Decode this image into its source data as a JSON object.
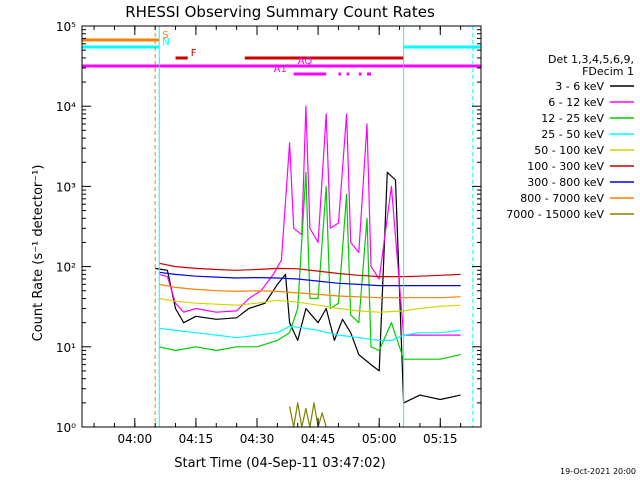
{
  "chart_data": {
    "type": "line",
    "title": "RHESSI Observing Summary Count Rates",
    "xlabel": "Start Time (04-Sep-11 03:47:02)",
    "ylabel": "Count Rate (s⁻¹ detector⁻¹)",
    "y_scale": "log",
    "ylim": [
      1,
      100000
    ],
    "xlim": [
      "03:47:02",
      "05:25:00"
    ],
    "x_ticks": [
      "04:00",
      "04:15",
      "04:30",
      "04:45",
      "05:00",
      "05:15"
    ],
    "y_ticks": [
      {
        "value": 1,
        "label": "10⁰"
      },
      {
        "value": 10,
        "label": "10¹"
      },
      {
        "value": 100,
        "label": "10²"
      },
      {
        "value": 1000,
        "label": "10³"
      },
      {
        "value": 10000,
        "label": "10⁴"
      },
      {
        "value": 100000,
        "label": "10⁵"
      }
    ],
    "legend_position": "right",
    "legend_header": [
      "Det 1,3,4,5,6,9,",
      "FDecim 1"
    ],
    "footer": "19-Oct-2021 20:00",
    "series": [
      {
        "name": "3 - 6 keV",
        "color": "#000000",
        "points": [
          [
            "04:05",
            95
          ],
          [
            "04:08",
            90
          ],
          [
            "04:10",
            30
          ],
          [
            "04:12",
            20
          ],
          [
            "04:15",
            24
          ],
          [
            "04:20",
            22
          ],
          [
            "04:25",
            23
          ],
          [
            "04:28",
            30
          ],
          [
            "04:32",
            35
          ],
          [
            "04:35",
            60
          ],
          [
            "04:37",
            80
          ],
          [
            "04:38",
            20
          ],
          [
            "04:40",
            12
          ],
          [
            "04:42",
            30
          ],
          [
            "04:45",
            20
          ],
          [
            "04:47",
            30
          ],
          [
            "04:49",
            12
          ],
          [
            "04:51",
            22
          ],
          [
            "04:53",
            15
          ],
          [
            "04:55",
            8
          ],
          [
            "04:58",
            6
          ],
          [
            "05:00",
            5
          ],
          [
            "05:02",
            1500
          ],
          [
            "05:04",
            1200
          ],
          [
            "05:06",
            2
          ],
          [
            "05:10",
            2.5
          ],
          [
            "05:15",
            2.2
          ],
          [
            "05:20",
            2.5
          ]
        ]
      },
      {
        "name": "6 - 12 keV",
        "color": "#ff00ff",
        "points": [
          [
            "04:06",
            80
          ],
          [
            "04:08",
            75
          ],
          [
            "04:10",
            35
          ],
          [
            "04:12",
            27
          ],
          [
            "04:15",
            30
          ],
          [
            "04:20",
            27
          ],
          [
            "04:25",
            28
          ],
          [
            "04:28",
            40
          ],
          [
            "04:31",
            50
          ],
          [
            "04:34",
            80
          ],
          [
            "04:36",
            120
          ],
          [
            "04:38",
            3500
          ],
          [
            "04:39",
            300
          ],
          [
            "04:41",
            250
          ],
          [
            "04:42",
            10000
          ],
          [
            "04:43",
            300
          ],
          [
            "04:45",
            200
          ],
          [
            "04:47",
            8000
          ],
          [
            "04:48",
            300
          ],
          [
            "04:50",
            350
          ],
          [
            "04:52",
            8000
          ],
          [
            "04:53",
            200
          ],
          [
            "04:55",
            150
          ],
          [
            "04:57",
            6000
          ],
          [
            "04:58",
            100
          ],
          [
            "05:00",
            70
          ],
          [
            "05:03",
            1000
          ],
          [
            "05:06",
            14
          ],
          [
            "05:10",
            14
          ],
          [
            "05:15",
            14
          ],
          [
            "05:20",
            14
          ]
        ]
      },
      {
        "name": "12 - 25 keV",
        "color": "#00cc00",
        "points": [
          [
            "04:06",
            10
          ],
          [
            "04:10",
            9
          ],
          [
            "04:15",
            10
          ],
          [
            "04:20",
            9
          ],
          [
            "04:25",
            10
          ],
          [
            "04:30",
            10
          ],
          [
            "04:35",
            12
          ],
          [
            "04:38",
            15
          ],
          [
            "04:40",
            30
          ],
          [
            "04:42",
            1500
          ],
          [
            "04:43",
            40
          ],
          [
            "04:45",
            40
          ],
          [
            "04:47",
            1000
          ],
          [
            "04:48",
            30
          ],
          [
            "04:50",
            35
          ],
          [
            "04:52",
            800
          ],
          [
            "04:53",
            25
          ],
          [
            "04:55",
            20
          ],
          [
            "04:57",
            400
          ],
          [
            "04:58",
            10
          ],
          [
            "05:00",
            9
          ],
          [
            "05:03",
            20
          ],
          [
            "05:06",
            7
          ],
          [
            "05:10",
            7
          ],
          [
            "05:15",
            7
          ],
          [
            "05:20",
            8
          ]
        ]
      },
      {
        "name": "25 - 50 keV",
        "color": "#00ffff",
        "points": [
          [
            "04:06",
            17
          ],
          [
            "04:10",
            16
          ],
          [
            "04:15",
            15
          ],
          [
            "04:20",
            14
          ],
          [
            "04:25",
            13
          ],
          [
            "04:30",
            14
          ],
          [
            "04:35",
            15
          ],
          [
            "04:38",
            18
          ],
          [
            "04:42",
            17
          ],
          [
            "04:45",
            16
          ],
          [
            "04:50",
            14
          ],
          [
            "04:55",
            13
          ],
          [
            "05:00",
            12
          ],
          [
            "05:03",
            12
          ],
          [
            "05:06",
            14
          ],
          [
            "05:10",
            15
          ],
          [
            "05:15",
            15
          ],
          [
            "05:20",
            16
          ]
        ]
      },
      {
        "name": "50 - 100 keV",
        "color": "#d4d400",
        "points": [
          [
            "04:06",
            40
          ],
          [
            "04:10",
            37
          ],
          [
            "04:15",
            35
          ],
          [
            "04:20",
            34
          ],
          [
            "04:25",
            33
          ],
          [
            "04:30",
            35
          ],
          [
            "04:35",
            38
          ],
          [
            "04:40",
            36
          ],
          [
            "04:45",
            33
          ],
          [
            "04:50",
            30
          ],
          [
            "04:55",
            28
          ],
          [
            "05:00",
            27
          ],
          [
            "05:06",
            28
          ],
          [
            "05:10",
            30
          ],
          [
            "05:15",
            32
          ],
          [
            "05:20",
            33
          ]
        ]
      },
      {
        "name": "100 - 300 keV",
        "color": "#cc0000",
        "points": [
          [
            "04:06",
            110
          ],
          [
            "04:10",
            100
          ],
          [
            "04:15",
            95
          ],
          [
            "04:20",
            92
          ],
          [
            "04:25",
            90
          ],
          [
            "04:30",
            92
          ],
          [
            "04:35",
            95
          ],
          [
            "04:40",
            94
          ],
          [
            "04:45",
            88
          ],
          [
            "04:50",
            82
          ],
          [
            "04:55",
            78
          ],
          [
            "05:00",
            75
          ],
          [
            "05:06",
            75
          ],
          [
            "05:10",
            76
          ],
          [
            "05:15",
            78
          ],
          [
            "05:20",
            80
          ]
        ]
      },
      {
        "name": "300 - 800 keV",
        "color": "#0000ff",
        "points": [
          [
            "04:06",
            85
          ],
          [
            "04:10",
            80
          ],
          [
            "04:15",
            76
          ],
          [
            "04:20",
            74
          ],
          [
            "04:25",
            72
          ],
          [
            "04:30",
            73
          ],
          [
            "04:35",
            72
          ],
          [
            "04:40",
            70
          ],
          [
            "04:45",
            66
          ],
          [
            "04:50",
            62
          ],
          [
            "04:55",
            60
          ],
          [
            "05:00",
            58
          ],
          [
            "05:06",
            58
          ],
          [
            "05:10",
            58
          ],
          [
            "05:15",
            58
          ],
          [
            "05:20",
            58
          ]
        ]
      },
      {
        "name": "800 - 7000 keV",
        "color": "#ff8000",
        "points": [
          [
            "04:06",
            60
          ],
          [
            "04:10",
            55
          ],
          [
            "04:15",
            52
          ],
          [
            "04:20",
            50
          ],
          [
            "04:25",
            49
          ],
          [
            "04:30",
            50
          ],
          [
            "04:35",
            49
          ],
          [
            "04:40",
            47
          ],
          [
            "04:45",
            45
          ],
          [
            "04:50",
            43
          ],
          [
            "04:55",
            42
          ],
          [
            "05:00",
            41
          ],
          [
            "05:06",
            41
          ],
          [
            "05:10",
            41
          ],
          [
            "05:15",
            41
          ],
          [
            "05:20",
            42
          ]
        ]
      },
      {
        "name": "7000 - 15000 keV",
        "color": "#808000",
        "points": [
          [
            "04:38",
            1.8
          ],
          [
            "04:39",
            1
          ],
          [
            "04:40",
            2
          ],
          [
            "04:41",
            1
          ],
          [
            "04:42",
            1.7
          ],
          [
            "04:43",
            1
          ],
          [
            "04:44",
            2
          ],
          [
            "04:45",
            1
          ],
          [
            "04:46",
            1.5
          ],
          [
            "04:47",
            1
          ]
        ]
      }
    ],
    "flags": [
      {
        "label": "S",
        "color": "#ff8000",
        "segments": [
          [
            "03:47:02",
            "04:06"
          ]
        ]
      },
      {
        "label": "N",
        "color": "#00ffff",
        "segments": [
          [
            "03:47:02",
            "04:06"
          ],
          [
            "05:06",
            "05:25"
          ]
        ]
      },
      {
        "label": "F",
        "color": "#cc0000",
        "segments": [
          [
            "04:10",
            "04:13"
          ],
          [
            "04:27",
            "05:06"
          ]
        ]
      },
      {
        "label": "AQ",
        "color": "#ff00ff",
        "segments": [
          [
            "03:47:02",
            "05:25"
          ]
        ]
      },
      {
        "label": "A1",
        "color": "#ff00ff",
        "segments": [
          [
            "04:39",
            "04:47"
          ],
          [
            "04:50",
            "04:50:40"
          ],
          [
            "04:52",
            "04:52:40"
          ],
          [
            "04:55",
            "04:55:40"
          ],
          [
            "04:57",
            "04:58"
          ]
        ]
      }
    ],
    "vertical_markers": [
      {
        "time": "04:05",
        "style": "dashed",
        "color": "#ff8000"
      },
      {
        "time": "04:06",
        "style": "solid",
        "color": "#00ffff"
      },
      {
        "time": "05:06",
        "style": "solid",
        "color": "#00ffff"
      },
      {
        "time": "05:23",
        "style": "dashed",
        "color": "#00ffff"
      }
    ]
  }
}
